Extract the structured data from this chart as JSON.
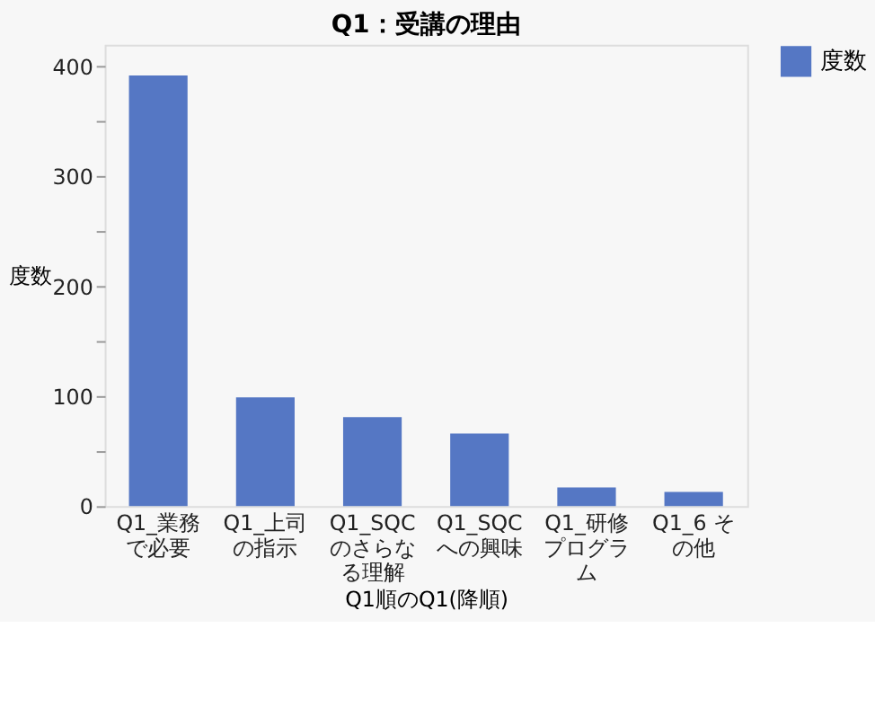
{
  "chart_data": {
    "type": "bar",
    "title": "Q1：受講の理由",
    "xlabel": "Q1順のQ1(降順)",
    "ylabel": "度数",
    "categories": [
      "Q1_業務で必要",
      "Q1_上司の指示",
      "Q1_SQCのさらなる理解",
      "Q1_SQCへの興味",
      "Q1_研修プログラム",
      "Q1_6 その他"
    ],
    "series": [
      {
        "name": "度数",
        "color": "#5577c4",
        "values": [
          392,
          99,
          81,
          66,
          17,
          13
        ]
      }
    ],
    "ylim": [
      0,
      420
    ],
    "yticks": [
      0,
      {
        "value": 50,
        "label": null
      },
      100,
      {
        "value": 150,
        "label": null
      },
      200,
      {
        "value": 250,
        "label": null
      },
      300,
      {
        "value": 350,
        "label": null
      },
      400
    ],
    "grid": false,
    "legend": "top right"
  }
}
